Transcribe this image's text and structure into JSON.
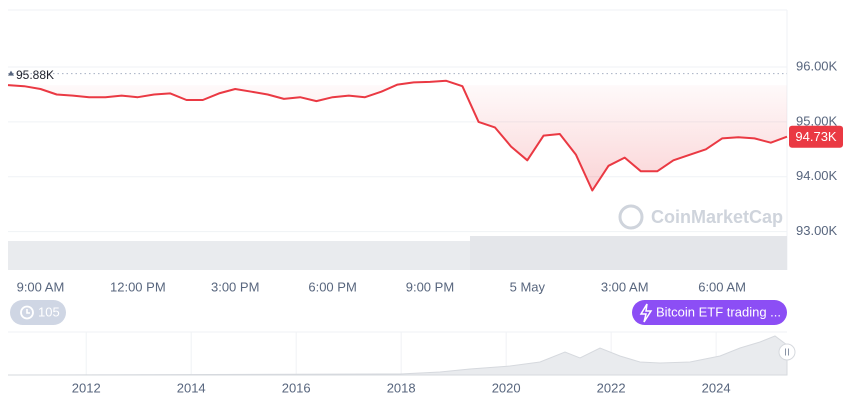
{
  "chart_data": [
    {
      "type": "line",
      "categories": [
        null,
        null,
        "9:00 AM",
        null,
        null,
        null,
        null,
        null,
        "12:00 PM",
        null,
        null,
        null,
        null,
        null,
        "3:00 PM",
        null,
        null,
        null,
        null,
        null,
        "6:00 PM",
        null,
        null,
        null,
        null,
        null,
        "9:00 PM",
        null,
        null,
        null,
        null,
        null,
        "5 May",
        null,
        null,
        null,
        null,
        null,
        "3:00 AM",
        null,
        null,
        null,
        null,
        null,
        "6:00 AM",
        null,
        null,
        null,
        null
      ],
      "values": [
        95670,
        95650,
        95600,
        95500,
        95480,
        95450,
        95450,
        95480,
        95450,
        95500,
        95520,
        95400,
        95400,
        95520,
        95600,
        95550,
        95500,
        95420,
        95450,
        95380,
        95450,
        95480,
        95450,
        95550,
        95680,
        95720,
        95730,
        95750,
        95650,
        95000,
        94900,
        94550,
        94300,
        94750,
        94780,
        94400,
        93750,
        94200,
        94350,
        94100,
        94100,
        94300,
        94400,
        94500,
        94700,
        94720,
        94700,
        94620,
        94730
      ],
      "value_labels": [
        null,
        null,
        null,
        null,
        null,
        null,
        null,
        null,
        null,
        null,
        null,
        null,
        null,
        null,
        null,
        null,
        null,
        null,
        null,
        null,
        null,
        null,
        null,
        null,
        null,
        null,
        null,
        null,
        null,
        null,
        null,
        null,
        null,
        null,
        null,
        null,
        null,
        null,
        null,
        null,
        null,
        null,
        null,
        null,
        null,
        null,
        null,
        null,
        "94.73K"
      ],
      "color": "#ea3943",
      "ylim": [
        92300,
        97040
      ],
      "yticks": [
        {
          "value": 93000,
          "label": "93.00K"
        },
        {
          "value": 94000,
          "label": "94.00K"
        },
        {
          "value": 95000,
          "label": "95.00K"
        },
        {
          "value": 96000,
          "label": "96.00K"
        }
      ],
      "reference_line": {
        "value": 95880,
        "label": "95.88K"
      },
      "grid": true
    },
    {
      "type": "overview",
      "xlim": [
        2010.51,
        2025.35
      ],
      "xticks": [
        2012,
        2014,
        2016,
        2018,
        2020,
        2022,
        2024
      ]
    }
  ],
  "annotations": {
    "history_badge": "105",
    "event_badge": "Bitcoin ETF trading ...",
    "watermark": "CoinMarketCap"
  }
}
